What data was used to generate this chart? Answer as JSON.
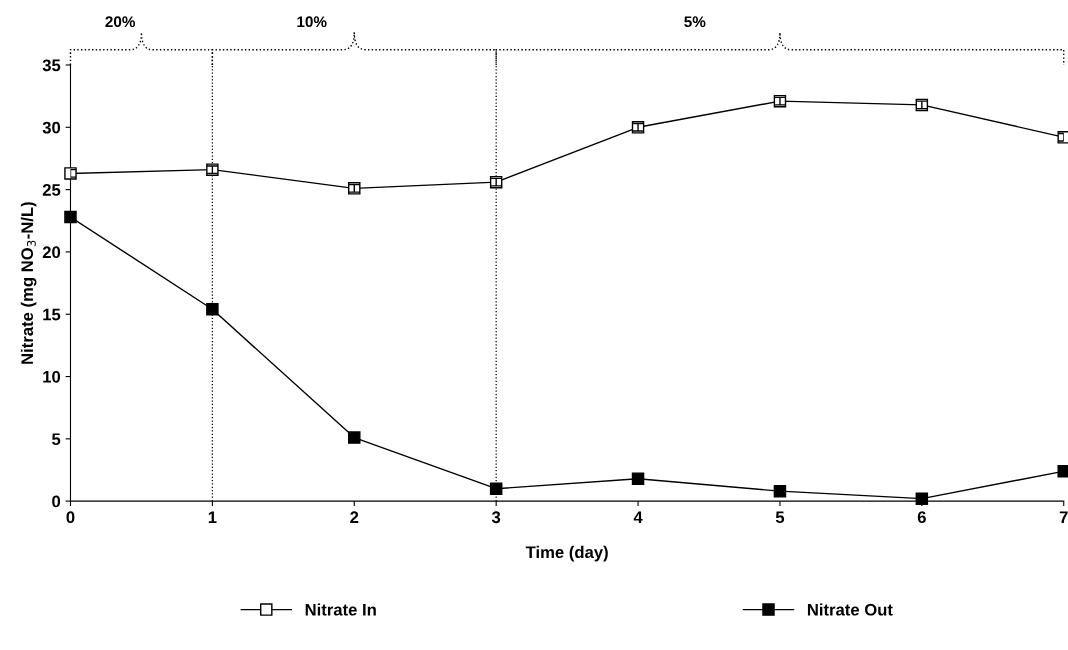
{
  "chart_data": {
    "type": "line",
    "xlabel": "Time (day)",
    "ylabel": "Nitrate (mg NO$_{3}$-N/L)",
    "x": [
      0,
      1,
      2,
      3,
      4,
      5,
      6,
      7
    ],
    "series": [
      {
        "name": "Nitrate In",
        "color": "#000000",
        "values": [
          26.3,
          26.6,
          25.1,
          25.6,
          30.0,
          32.1,
          31.8,
          29.2
        ],
        "errors": [
          0.3,
          0.3,
          0.3,
          0.3,
          0.3,
          0.3,
          0.3,
          0.3
        ]
      },
      {
        "name": "Nitrate Out",
        "color": "#000000",
        "values": [
          22.8,
          15.4,
          5.1,
          1.0,
          1.8,
          0.8,
          0.2,
          2.4
        ],
        "errors": [
          0.3,
          0.3,
          0.3,
          0.3,
          0.3,
          0.3,
          0.3,
          0.3
        ]
      }
    ],
    "xlim": [
      0,
      7
    ],
    "xticks": [
      0,
      1,
      2,
      3,
      4,
      5,
      6,
      7
    ],
    "ylim": [
      0,
      35
    ],
    "yticks": [
      0,
      5,
      10,
      15,
      20,
      25,
      30,
      35
    ],
    "ref_lines": [
      {
        "axis": "x",
        "value": 1,
        "line_style": "dotted",
        "color": "#000000"
      },
      {
        "axis": "x",
        "value": 3,
        "line_style": "dotted",
        "color": "#000000"
      }
    ],
    "annotations": [
      "20%",
      "10%",
      "5%"
    ],
    "grid": false,
    "legend": "bottom",
    "marker": "square",
    "line_style": "solid"
  }
}
